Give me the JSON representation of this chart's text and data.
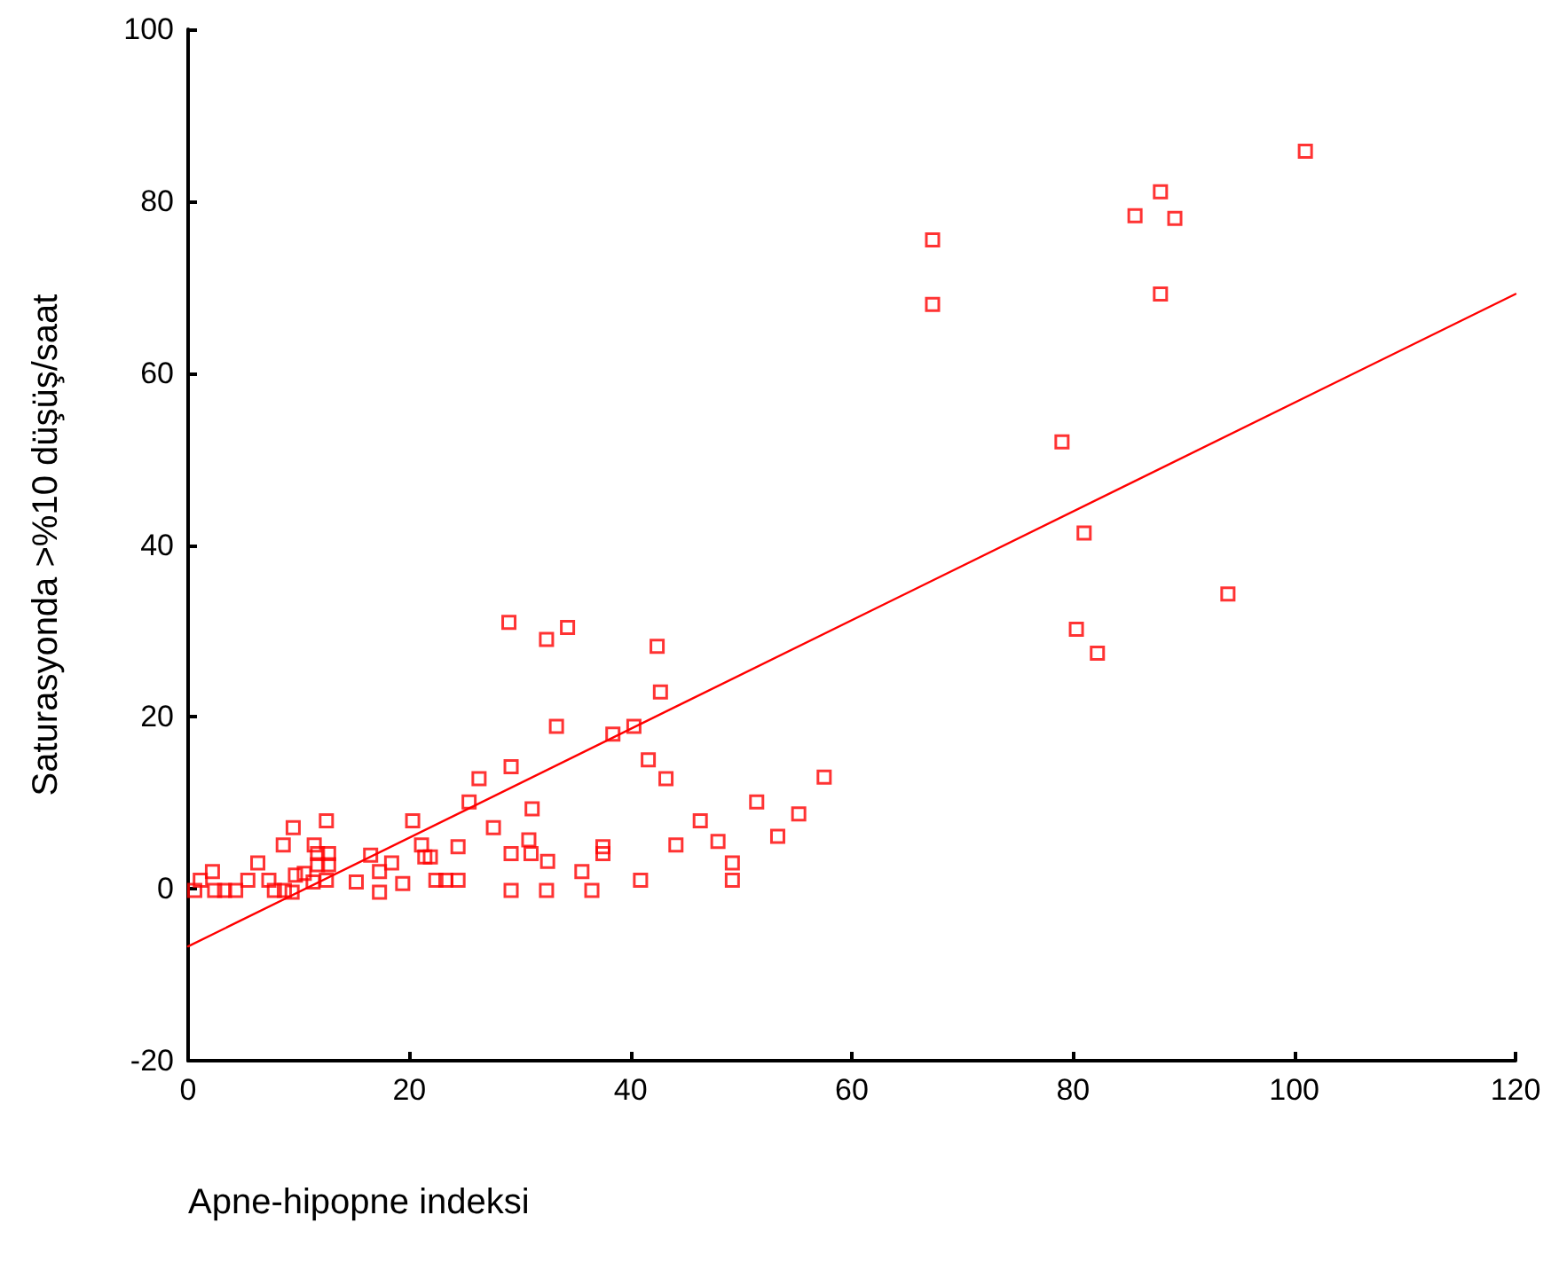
{
  "chart_data": {
    "type": "scatter",
    "xlabel": "Apne-hipopne indeksi",
    "ylabel": "Saturasyonda >%10 düşüş/saat",
    "xlim": [
      0,
      120
    ],
    "xticks": [
      0,
      20,
      40,
      60,
      80,
      100,
      120
    ],
    "ylim": [
      -20,
      100
    ],
    "yticks": [
      -20,
      0,
      20,
      40,
      60,
      80,
      100
    ],
    "grid": false,
    "marker": "square",
    "series": [
      {
        "color": "#ff0000",
        "x": [
          67.3,
          67.3,
          79,
          81,
          80.3,
          82.2,
          85.6,
          87.9,
          89.2,
          87.9,
          94,
          101,
          29,
          32.4,
          34.3,
          42.4,
          42.7,
          33.3,
          38.4,
          40.3,
          41.6,
          43.2,
          57.5,
          51.4,
          55.2,
          46.3,
          53.3,
          47.9,
          44.1,
          49.2,
          49.2,
          40.9,
          37.5,
          37.5,
          29.2,
          31.1,
          30.8,
          31,
          29.2,
          32.5,
          35.6,
          36.5,
          32.4,
          29.2,
          26.3,
          25.4,
          20.3,
          27.6,
          12.5,
          9.5,
          21.1,
          24.4,
          11.4,
          8.6,
          6.3,
          11.7,
          11.7,
          12.7,
          12.7,
          16.5,
          18.4,
          5.4,
          7.3,
          9.7,
          11.3,
          2.2,
          1.1,
          2.4,
          15.2,
          19.4,
          22.4,
          23.3,
          24.4,
          17.3,
          17.3,
          21.4,
          21.9,
          8.7,
          4.3,
          3.3,
          0.6,
          12.5,
          9.4,
          10.5,
          7.8
        ],
        "values": [
          75.5,
          68,
          52,
          41.4,
          30.2,
          27.4,
          78.3,
          81.1,
          78,
          69.2,
          34.3,
          85.8,
          31,
          29,
          30.4,
          28.2,
          22.9,
          18.9,
          18,
          18.9,
          15,
          12.8,
          13,
          10.1,
          8.7,
          7.9,
          6.1,
          5.5,
          5.1,
          3,
          1,
          1,
          4.1,
          4.9,
          14.2,
          9.3,
          5.7,
          4.1,
          4.1,
          3.2,
          2,
          -0.2,
          -0.2,
          -0.2,
          12.8,
          10.1,
          7.9,
          7.1,
          7.9,
          7.1,
          5.1,
          4.9,
          5.1,
          5.1,
          3,
          4.1,
          2.8,
          4.1,
          2.8,
          3.9,
          3,
          1,
          1,
          1.6,
          0.8,
          2,
          1,
          -0.2,
          0.8,
          0.6,
          1,
          1,
          1,
          2,
          -0.4,
          3.7,
          3.7,
          -0.2,
          -0.2,
          -0.2,
          -0.2,
          1,
          -0.4,
          1.8,
          -0.2
        ]
      },
      {
        "type": "line",
        "color": "#ff0000",
        "marker": "none",
        "line_style": "solid",
        "x": [
          0,
          120
        ],
        "values": [
          -6.7,
          69.2
        ]
      }
    ]
  }
}
